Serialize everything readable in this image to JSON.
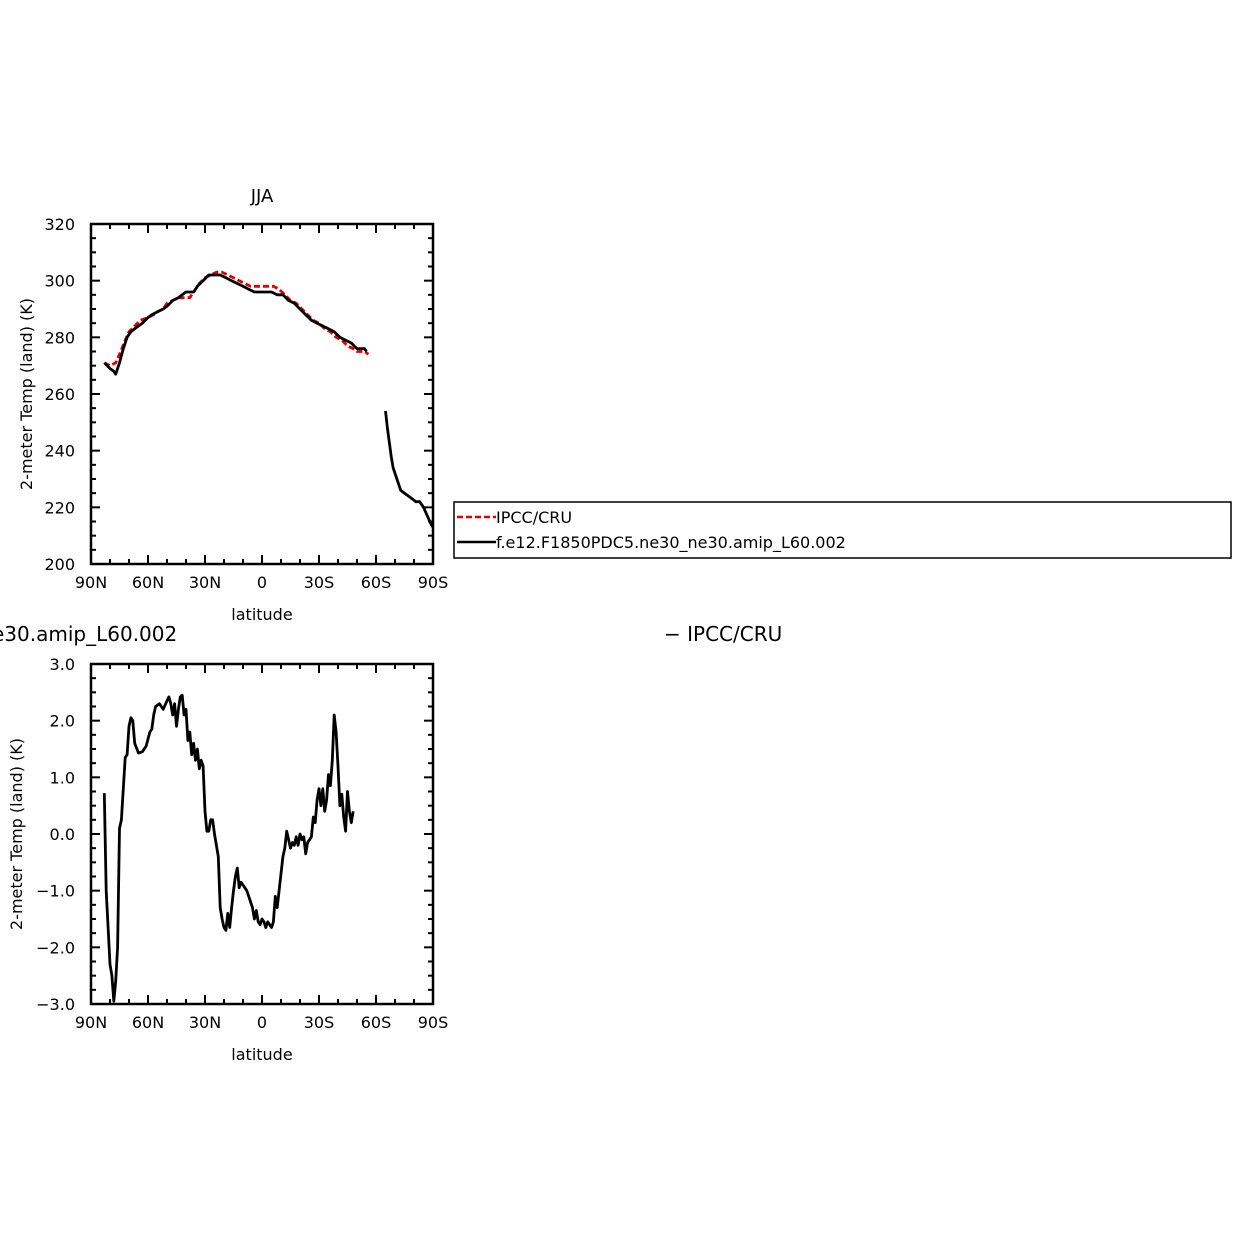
{
  "chart_data": [
    {
      "type": "line",
      "title": "JJA",
      "xlabel": "latitude",
      "ylabel": "2-meter Temp (land) (K)",
      "xlim": [
        90,
        -90
      ],
      "ylim": [
        200,
        320
      ],
      "xticks": [
        90,
        60,
        30,
        0,
        -30,
        -60,
        -90
      ],
      "xtick_labels": [
        "90N",
        "60N",
        "30N",
        "0",
        "30S",
        "60S",
        "90S"
      ],
      "yticks": [
        200,
        220,
        240,
        260,
        280,
        300,
        320
      ],
      "ytick_labels": [
        "200",
        "220",
        "240",
        "260",
        "280",
        "300",
        "320"
      ],
      "legend": {
        "placement": "right, outside plot",
        "entries": [
          {
            "label": "IPCC/CRU",
            "color": "#e00000",
            "style": "dashed"
          },
          {
            "label": "f.e12.F1850PDC5.ne30_ne30.amip_L60.002",
            "color": "#000000",
            "style": "solid"
          }
        ]
      },
      "series": [
        {
          "name": "IPCC/CRU",
          "color": "#e00000",
          "style": "dashed",
          "points": [
            [
              83,
              271
            ],
            [
              80,
              270
            ],
            [
              77,
              271
            ],
            [
              75,
              274
            ],
            [
              72,
              279
            ],
            [
              70,
              282
            ],
            [
              67,
              284
            ],
            [
              64,
              286
            ],
            [
              60,
              287
            ],
            [
              57,
              288
            ],
            [
              55,
              289
            ],
            [
              52,
              290
            ],
            [
              50,
              292
            ],
            [
              47,
              293
            ],
            [
              44,
              294
            ],
            [
              42,
              294
            ],
            [
              40,
              294
            ],
            [
              38,
              294
            ],
            [
              36,
              296
            ],
            [
              33,
              299
            ],
            [
              30,
              301
            ],
            [
              27,
              302
            ],
            [
              24,
              303
            ],
            [
              21,
              303
            ],
            [
              18,
              302
            ],
            [
              15,
              301
            ],
            [
              12,
              300
            ],
            [
              9,
              299
            ],
            [
              6,
              298
            ],
            [
              3,
              298
            ],
            [
              0,
              298
            ],
            [
              -3,
              298
            ],
            [
              -6,
              298
            ],
            [
              -9,
              297
            ],
            [
              -12,
              295
            ],
            [
              -15,
              293
            ],
            [
              -18,
              292
            ],
            [
              -21,
              290
            ],
            [
              -24,
              288
            ],
            [
              -27,
              286
            ],
            [
              -30,
              285
            ],
            [
              -33,
              283
            ],
            [
              -36,
              282
            ],
            [
              -39,
              280
            ],
            [
              -42,
              279
            ],
            [
              -45,
              277
            ],
            [
              -48,
              276
            ],
            [
              -50,
              275
            ],
            [
              -52,
              275
            ],
            [
              -54,
              275
            ],
            [
              -56,
              274
            ]
          ]
        },
        {
          "name": "f.e12.F1850PDC5.ne30_ne30.amip_L60.002",
          "color": "#000000",
          "style": "solid",
          "points": [
            [
              83,
              271
            ],
            [
              80,
              269
            ],
            [
              78,
              268
            ],
            [
              77,
              267
            ],
            [
              75,
              271
            ],
            [
              73,
              276
            ],
            [
              71,
              280
            ],
            [
              69,
              282
            ],
            [
              67,
              283
            ],
            [
              65,
              284
            ],
            [
              63,
              285
            ],
            [
              60,
              287
            ],
            [
              58,
              288
            ],
            [
              55,
              289
            ],
            [
              52,
              290
            ],
            [
              50,
              291
            ],
            [
              47,
              293
            ],
            [
              44,
              294
            ],
            [
              42,
              295
            ],
            [
              40,
              296
            ],
            [
              38,
              296
            ],
            [
              36,
              296
            ],
            [
              34,
              298
            ],
            [
              31,
              300
            ],
            [
              28,
              302
            ],
            [
              25,
              302
            ],
            [
              22,
              302
            ],
            [
              19,
              301
            ],
            [
              16,
              300
            ],
            [
              13,
              299
            ],
            [
              10,
              298
            ],
            [
              7,
              297
            ],
            [
              4,
              296
            ],
            [
              1,
              296
            ],
            [
              -2,
              296
            ],
            [
              -5,
              296
            ],
            [
              -8,
              295
            ],
            [
              -11,
              295
            ],
            [
              -14,
              293
            ],
            [
              -17,
              292
            ],
            [
              -20,
              290
            ],
            [
              -23,
              288
            ],
            [
              -26,
              286
            ],
            [
              -29,
              285
            ],
            [
              -32,
              284
            ],
            [
              -35,
              283
            ],
            [
              -38,
              282
            ],
            [
              -41,
              280
            ],
            [
              -44,
              279
            ],
            [
              -47,
              278
            ],
            [
              -50,
              276
            ],
            [
              -52,
              276
            ],
            [
              -54,
              276
            ],
            [
              -55,
              275
            ]
          ],
          "segment2": [
            [
              -65,
              254
            ],
            [
              -66,
              248
            ],
            [
              -67,
              243
            ],
            [
              -68,
              238
            ],
            [
              -69,
              234
            ],
            [
              -71,
              230
            ],
            [
              -73,
              226
            ],
            [
              -75,
              225
            ],
            [
              -77,
              224
            ],
            [
              -79,
              223
            ],
            [
              -81,
              222
            ],
            [
              -83,
              222
            ],
            [
              -85,
              220
            ],
            [
              -87,
              217
            ],
            [
              -89,
              214
            ],
            [
              -90,
              213
            ]
          ]
        }
      ]
    },
    {
      "type": "line",
      "title": "e30.amip_L60.002",
      "title_right": "− IPCC/CRU",
      "xlabel": "latitude",
      "ylabel": "2-meter Temp (land) (K)",
      "xlim": [
        90,
        -90
      ],
      "ylim": [
        -3,
        3
      ],
      "xticks": [
        90,
        60,
        30,
        0,
        -30,
        -60,
        -90
      ],
      "xtick_labels": [
        "90N",
        "60N",
        "30N",
        "0",
        "30S",
        "60S",
        "90S"
      ],
      "yticks": [
        -3,
        -2,
        -1,
        0,
        1,
        2,
        3
      ],
      "ytick_labels": [
        "−3.0",
        "−2.0",
        "−1.0",
        "0.0",
        "1.0",
        "2.0",
        "3.0"
      ],
      "series": [
        {
          "color": "#000000",
          "style": "solid",
          "points": [
            [
              83,
              0.72
            ],
            [
              82,
              -1.0
            ],
            [
              80,
              -2.3
            ],
            [
              79,
              -2.5
            ],
            [
              78,
              -2.95
            ],
            [
              77,
              -2.6
            ],
            [
              76,
              -2.0
            ],
            [
              75,
              0.1
            ],
            [
              74,
              0.25
            ],
            [
              73,
              0.8
            ],
            [
              72,
              1.35
            ],
            [
              71,
              1.4
            ],
            [
              70,
              1.9
            ],
            [
              69,
              2.05
            ],
            [
              68,
              2.0
            ],
            [
              67,
              1.6
            ],
            [
              65,
              1.43
            ],
            [
              63,
              1.45
            ],
            [
              61,
              1.55
            ],
            [
              59,
              1.8
            ],
            [
              58,
              1.85
            ],
            [
              57,
              2.1
            ],
            [
              56,
              2.25
            ],
            [
              54,
              2.3
            ],
            [
              52,
              2.2
            ],
            [
              50,
              2.35
            ],
            [
              49,
              2.42
            ],
            [
              48,
              2.3
            ],
            [
              47,
              2.1
            ],
            [
              46,
              2.3
            ],
            [
              45,
              1.9
            ],
            [
              44,
              2.2
            ],
            [
              43,
              2.42
            ],
            [
              42,
              2.45
            ],
            [
              41,
              2.1
            ],
            [
              40,
              2.2
            ],
            [
              39,
              1.65
            ],
            [
              38,
              1.8
            ],
            [
              37,
              1.4
            ],
            [
              36,
              1.6
            ],
            [
              35,
              1.3
            ],
            [
              34,
              1.5
            ],
            [
              33,
              1.15
            ],
            [
              32,
              1.3
            ],
            [
              31,
              1.2
            ],
            [
              30,
              0.4
            ],
            [
              29,
              0.05
            ],
            [
              28,
              0.05
            ],
            [
              27,
              0.25
            ],
            [
              26,
              0.25
            ],
            [
              25,
              0.0
            ],
            [
              24,
              -0.2
            ],
            [
              23,
              -0.4
            ],
            [
              22,
              -1.3
            ],
            [
              21,
              -1.5
            ],
            [
              20,
              -1.65
            ],
            [
              19,
              -1.7
            ],
            [
              18,
              -1.4
            ],
            [
              17,
              -1.65
            ],
            [
              16,
              -1.3
            ],
            [
              15,
              -1.0
            ],
            [
              14,
              -0.75
            ],
            [
              13,
              -0.6
            ],
            [
              12,
              -0.95
            ],
            [
              11,
              -0.85
            ],
            [
              10,
              -0.9
            ],
            [
              9,
              -0.95
            ],
            [
              8,
              -1.0
            ],
            [
              7,
              -1.1
            ],
            [
              6,
              -1.2
            ],
            [
              5,
              -1.3
            ],
            [
              4,
              -1.5
            ],
            [
              3,
              -1.35
            ],
            [
              2,
              -1.55
            ],
            [
              1,
              -1.6
            ],
            [
              0,
              -1.5
            ],
            [
              -1,
              -1.55
            ],
            [
              -2,
              -1.65
            ],
            [
              -3,
              -1.55
            ],
            [
              -4,
              -1.6
            ],
            [
              -5,
              -1.65
            ],
            [
              -6,
              -1.55
            ],
            [
              -7,
              -1.1
            ],
            [
              -8,
              -1.3
            ],
            [
              -9,
              -1.0
            ],
            [
              -10,
              -0.7
            ],
            [
              -11,
              -0.4
            ],
            [
              -12,
              -0.25
            ],
            [
              -13,
              0.05
            ],
            [
              -14,
              -0.1
            ],
            [
              -15,
              -0.25
            ],
            [
              -16,
              -0.15
            ],
            [
              -17,
              -0.2
            ],
            [
              -18,
              -0.05
            ],
            [
              -19,
              -0.2
            ],
            [
              -20,
              0.0
            ],
            [
              -21,
              -0.1
            ],
            [
              -22,
              -0.05
            ],
            [
              -23,
              -0.35
            ],
            [
              -24,
              -0.15
            ],
            [
              -25,
              -0.1
            ],
            [
              -26,
              -0.05
            ],
            [
              -27,
              0.3
            ],
            [
              -28,
              0.2
            ],
            [
              -29,
              0.6
            ],
            [
              -30,
              0.8
            ],
            [
              -31,
              0.5
            ],
            [
              -32,
              0.8
            ],
            [
              -33,
              0.4
            ],
            [
              -34,
              0.6
            ],
            [
              -35,
              1.05
            ],
            [
              -36,
              0.85
            ],
            [
              -37,
              1.3
            ],
            [
              -38,
              2.1
            ],
            [
              -39,
              1.8
            ],
            [
              -40,
              1.2
            ],
            [
              -41,
              0.5
            ],
            [
              -42,
              0.7
            ],
            [
              -43,
              0.3
            ],
            [
              -44,
              0.05
            ],
            [
              -45,
              0.75
            ],
            [
              -46,
              0.4
            ],
            [
              -47,
              0.2
            ],
            [
              -48,
              0.4
            ]
          ]
        }
      ]
    }
  ]
}
